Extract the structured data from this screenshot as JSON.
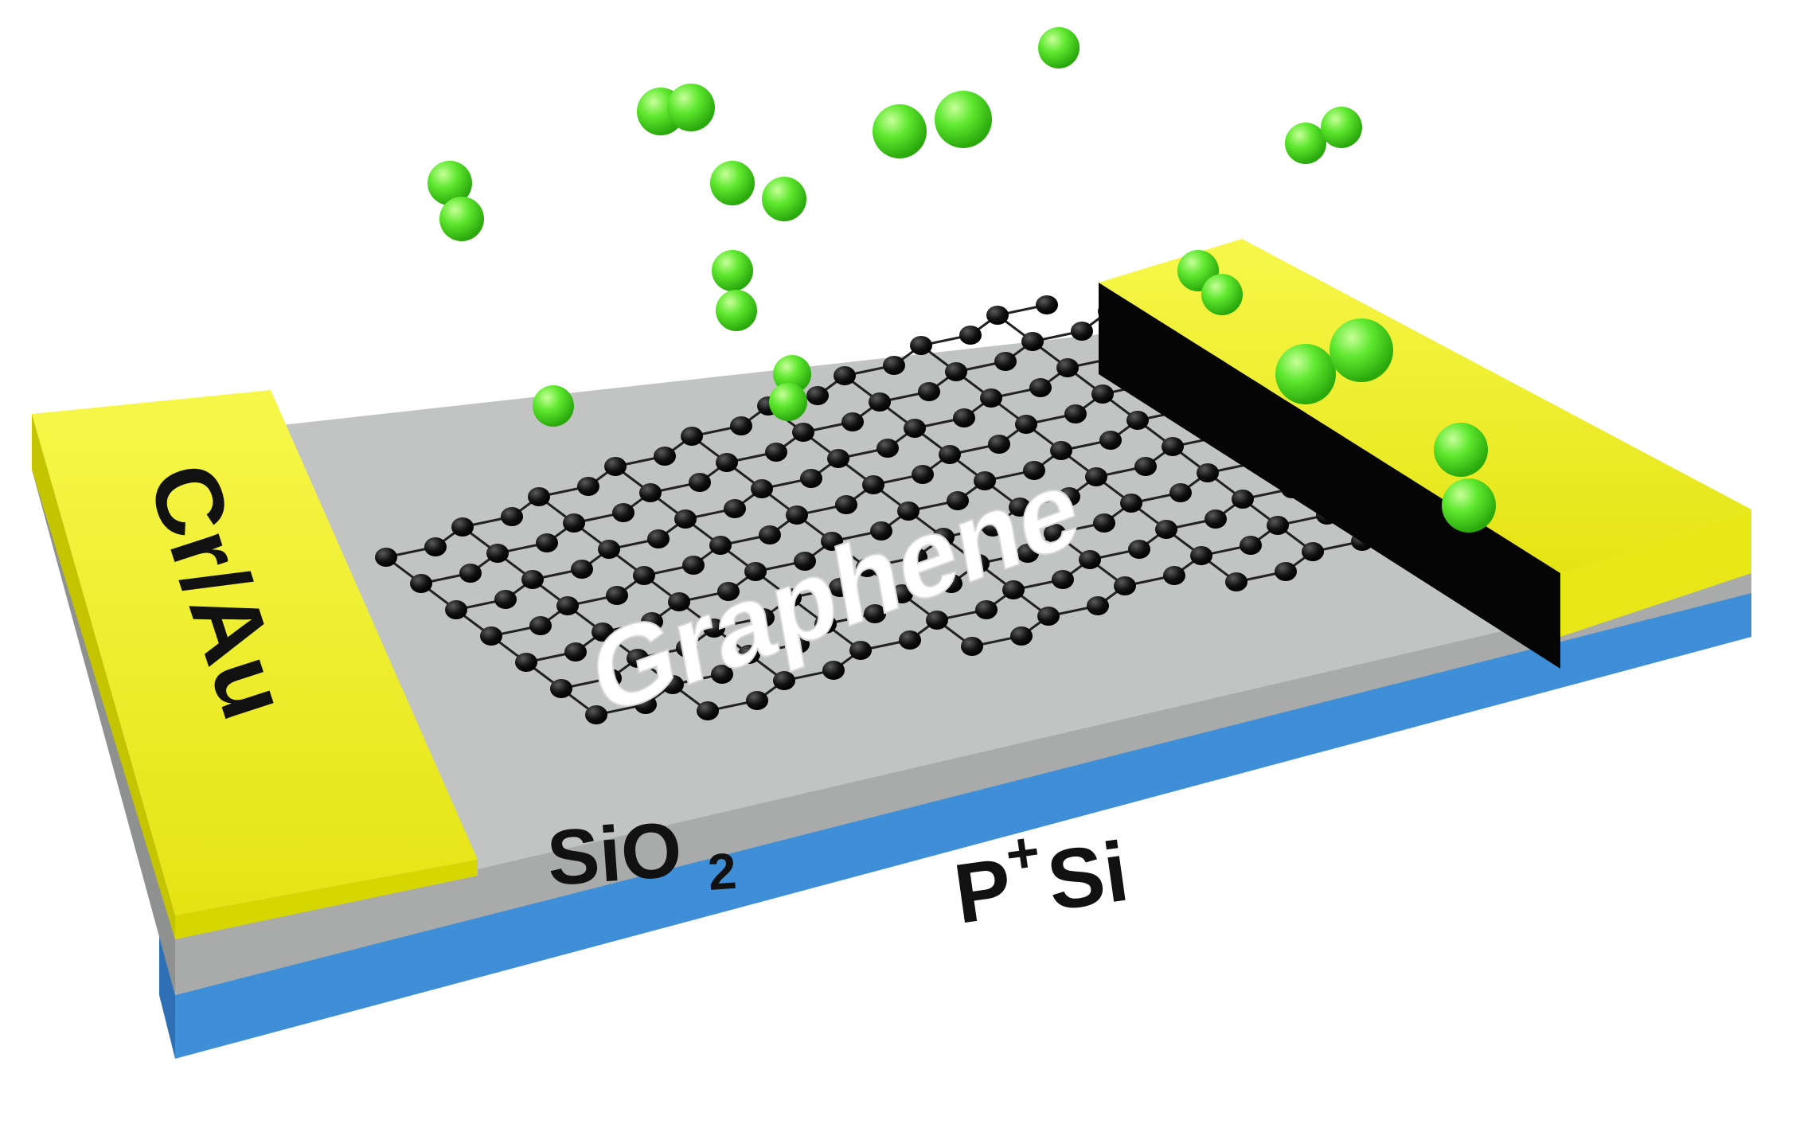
{
  "labels": {
    "electrode": "Cr/Au",
    "channel": "Graphene",
    "oxide": "SiO",
    "oxide_subscript": "2",
    "substrate": "P",
    "substrate_superscript": "+",
    "substrate_rest": "Si"
  },
  "colors": {
    "gold": "#f0f02a",
    "gold_side": "#d6d600",
    "oxide": "#c2c4c4",
    "oxide_side": "#9a9c9c",
    "silicon": "#3f8fd8",
    "silicon_side": "#2f6fb4",
    "atom": "#111111",
    "molecule": "#5ee82e"
  }
}
